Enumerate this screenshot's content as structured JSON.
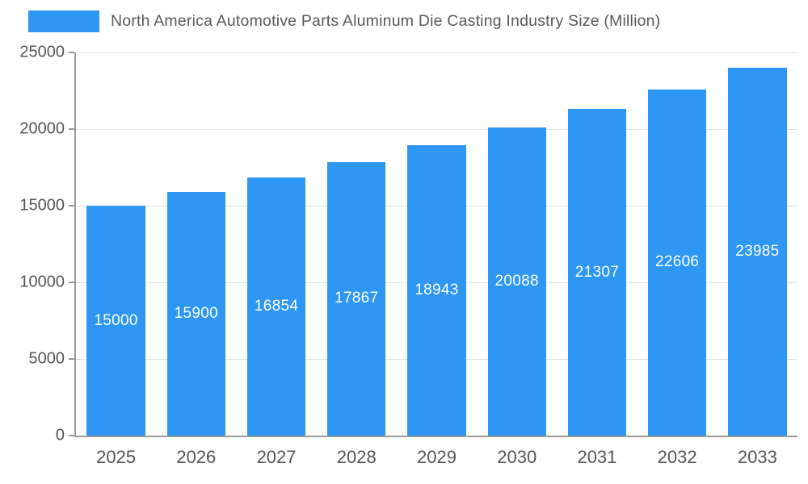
{
  "chart_data": {
    "type": "bar",
    "title": "North America Automotive Parts Aluminum Die Casting Industry Size (Million)",
    "categories": [
      "2025",
      "2026",
      "2027",
      "2028",
      "2029",
      "2030",
      "2031",
      "2032",
      "2033"
    ],
    "values": [
      15000,
      15900,
      16854,
      17867,
      18943,
      20088,
      21307,
      22606,
      23985
    ],
    "xlabel": "",
    "ylabel": "",
    "ylim": [
      0,
      25000
    ],
    "yticks": [
      0,
      5000,
      10000,
      15000,
      20000,
      25000
    ],
    "grid": true,
    "legend_position": "top-left",
    "value_labels": "inside-center"
  },
  "colors": {
    "bar": "#2E96F3",
    "value_label": "#ffffff",
    "axis_line": "#9a9a9a",
    "gridline": "#e2e2e2",
    "tick_text": "#555555",
    "title_text": "#595959",
    "background": "#ffffff"
  }
}
